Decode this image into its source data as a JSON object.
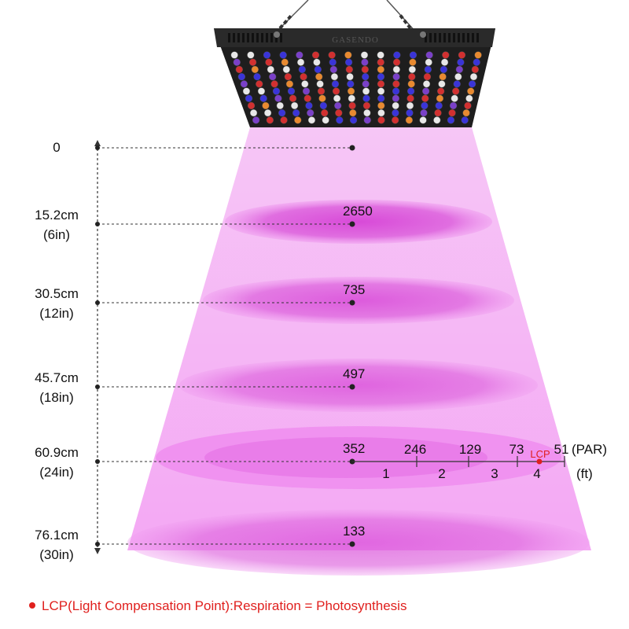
{
  "panel": {
    "brand_text": "GASENDO"
  },
  "distances": [
    {
      "label": "0",
      "sublabel": "",
      "par": ""
    },
    {
      "label": "15.2cm",
      "sublabel": "(6in)",
      "par": "2650"
    },
    {
      "label": "30.5cm",
      "sublabel": "(12in)",
      "par": "735"
    },
    {
      "label": "45.7cm",
      "sublabel": "(18in)",
      "par": "497"
    },
    {
      "label": "60.9cm",
      "sublabel": "(24in)",
      "par": "352"
    },
    {
      "label": "76.1cm",
      "sublabel": "(30in)",
      "par": "133"
    }
  ],
  "spread_scale": {
    "par_values": [
      "246",
      "129",
      "73",
      "51"
    ],
    "ft_ticks": [
      "1",
      "2",
      "3",
      "4"
    ],
    "par_unit": "(PAR)",
    "ft_unit": "(ft)",
    "lcp_marker": "LCP"
  },
  "footnote": "LCP(Light Compensation Point):Respiration = Photosynthesis",
  "colors": {
    "beam": "#f5b0f5",
    "hotspot": "#e060e0",
    "lcp_red": "#e0201e",
    "panel_frame": "#1e1e1e"
  }
}
